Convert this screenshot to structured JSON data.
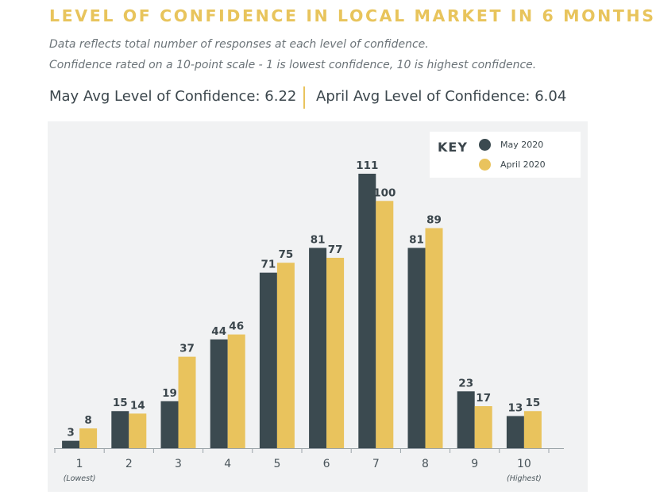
{
  "header": {
    "title": "LEVEL OF CONFIDENCE IN LOCAL MARKET IN 6 MONTHS",
    "subtitle_1": "Data reflects total number of responses at each level of confidence.",
    "subtitle_2": "Confidence rated on a 10-point scale - 1 is lowest confidence, 10 is highest confidence.",
    "may_avg": "May Avg Level of Confidence: 6.22",
    "april_avg": "April Avg Level of Confidence: 6.04"
  },
  "colors": {
    "title": "#e8c45c",
    "may": "#3b4a50",
    "april": "#e9c35d",
    "separator": "#e9c35d",
    "axis": "#9aa3a8"
  },
  "key": {
    "title": "KEY",
    "may_label": "May 2020",
    "april_label": "April 2020"
  },
  "chart_data": {
    "type": "bar",
    "categories": [
      "1",
      "2",
      "3",
      "4",
      "5",
      "6",
      "7",
      "8",
      "9",
      "10"
    ],
    "category_sublabels": [
      "(Lowest)",
      "",
      "",
      "",
      "",
      "",
      "",
      "",
      "",
      "(Highest)"
    ],
    "series": [
      {
        "name": "May 2020",
        "values": [
          3,
          15,
          19,
          44,
          71,
          81,
          111,
          81,
          23,
          13
        ]
      },
      {
        "name": "April 2020",
        "values": [
          8,
          14,
          37,
          46,
          75,
          77,
          100,
          89,
          17,
          15
        ]
      }
    ],
    "ylim": [
      0,
      111
    ],
    "legend": "top-right",
    "grid": false
  }
}
